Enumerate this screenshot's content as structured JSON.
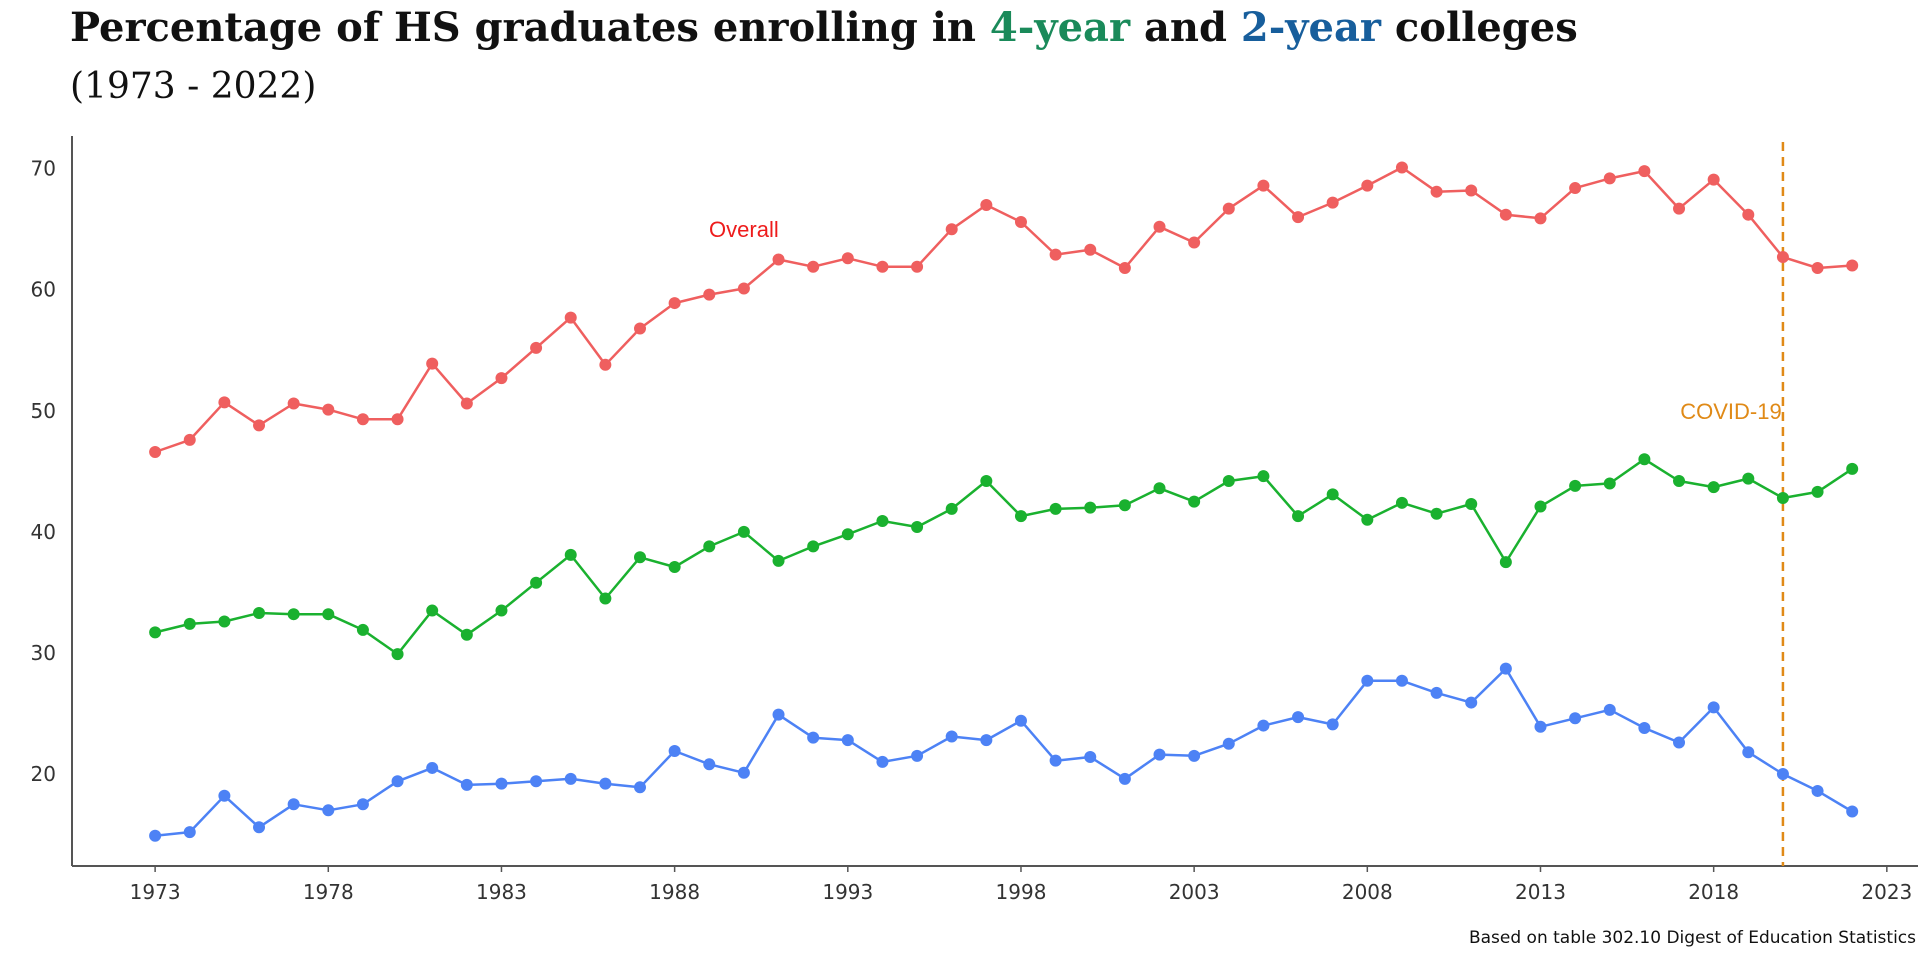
{
  "title": {
    "part1": "Percentage of HS graduates enrolling in ",
    "highlight1": "4-year",
    "part2": " and ",
    "highlight2": "2-year",
    "part3": " colleges",
    "color_4yr": "#1a8a5a",
    "color_2yr": "#175e9c"
  },
  "subtitle": "(1973 - 2022)",
  "caption": "Based on table 302.10 Digest of Education Statistics",
  "chart_data": {
    "type": "line",
    "x": [
      1973,
      1974,
      1975,
      1976,
      1977,
      1978,
      1979,
      1980,
      1981,
      1982,
      1983,
      1984,
      1985,
      1986,
      1987,
      1988,
      1989,
      1990,
      1991,
      1992,
      1993,
      1994,
      1995,
      1996,
      1997,
      1998,
      1999,
      2000,
      2001,
      2002,
      2003,
      2004,
      2005,
      2006,
      2007,
      2008,
      2009,
      2010,
      2011,
      2012,
      2013,
      2014,
      2015,
      2016,
      2017,
      2018,
      2019,
      2020,
      2021,
      2022
    ],
    "series": [
      {
        "color": "#ef5f5f",
        "values": [
          46.6,
          47.6,
          50.7,
          48.8,
          50.6,
          50.1,
          49.3,
          49.3,
          53.9,
          50.6,
          52.7,
          55.2,
          57.7,
          53.8,
          56.8,
          58.9,
          59.6,
          60.1,
          62.5,
          61.9,
          62.6,
          61.9,
          61.9,
          65.0,
          67.0,
          65.6,
          62.9,
          63.3,
          61.8,
          65.2,
          63.9,
          66.7,
          68.6,
          66.0,
          67.2,
          68.6,
          70.1,
          68.1,
          68.2,
          66.2,
          65.9,
          68.4,
          69.2,
          69.8,
          66.7,
          69.1,
          66.2,
          62.7,
          61.8,
          62.0
        ]
      },
      {
        "color": "#1ab12f",
        "values": [
          31.7,
          32.4,
          32.6,
          33.3,
          33.2,
          33.2,
          31.9,
          29.9,
          33.5,
          31.5,
          33.5,
          35.8,
          38.1,
          34.5,
          37.9,
          37.1,
          38.8,
          40.0,
          37.6,
          38.8,
          39.8,
          40.9,
          40.4,
          41.9,
          44.2,
          41.3,
          41.9,
          42.0,
          42.2,
          43.6,
          42.5,
          44.2,
          44.6,
          41.3,
          43.1,
          41.0,
          42.4,
          41.5,
          42.3,
          37.5,
          42.1,
          43.8,
          44.0,
          46.0,
          44.2,
          43.7,
          44.4,
          42.8,
          43.3,
          45.2
        ]
      },
      {
        "color": "#4d82f5",
        "values": [
          14.9,
          15.2,
          18.2,
          15.6,
          17.5,
          17.0,
          17.5,
          19.4,
          20.5,
          19.1,
          19.2,
          19.4,
          19.6,
          19.2,
          18.9,
          21.9,
          20.8,
          20.1,
          24.9,
          23.0,
          22.8,
          21.0,
          21.5,
          23.1,
          22.8,
          24.4,
          21.1,
          21.4,
          19.6,
          21.6,
          21.5,
          22.5,
          24.0,
          24.7,
          24.1,
          27.7,
          27.7,
          26.7,
          25.9,
          28.7,
          23.9,
          24.6,
          25.3,
          23.8,
          22.6,
          25.5,
          21.8,
          20.0,
          18.6,
          16.9
        ]
      }
    ],
    "annotations": [
      {
        "label": "Overall",
        "x": 1990,
        "y": 65.0,
        "color": "#ee1c1c"
      },
      {
        "label": "COVID-19",
        "x": 2018.5,
        "y": 50.0,
        "color": "#e08a17"
      }
    ],
    "vline": {
      "x": 2020,
      "color": "#e08a17"
    },
    "xticks": [
      1973,
      1978,
      1983,
      1988,
      1993,
      1998,
      2003,
      2008,
      2013,
      2018,
      2023
    ],
    "yticks": [
      20,
      30,
      40,
      50,
      60,
      70
    ],
    "xlim": [
      1970.6,
      2023.9
    ],
    "ylim": [
      12.4,
      72.7
    ],
    "grid": false,
    "legend": "none",
    "axis_color": "#555555",
    "tick_label_color": "#333333"
  }
}
